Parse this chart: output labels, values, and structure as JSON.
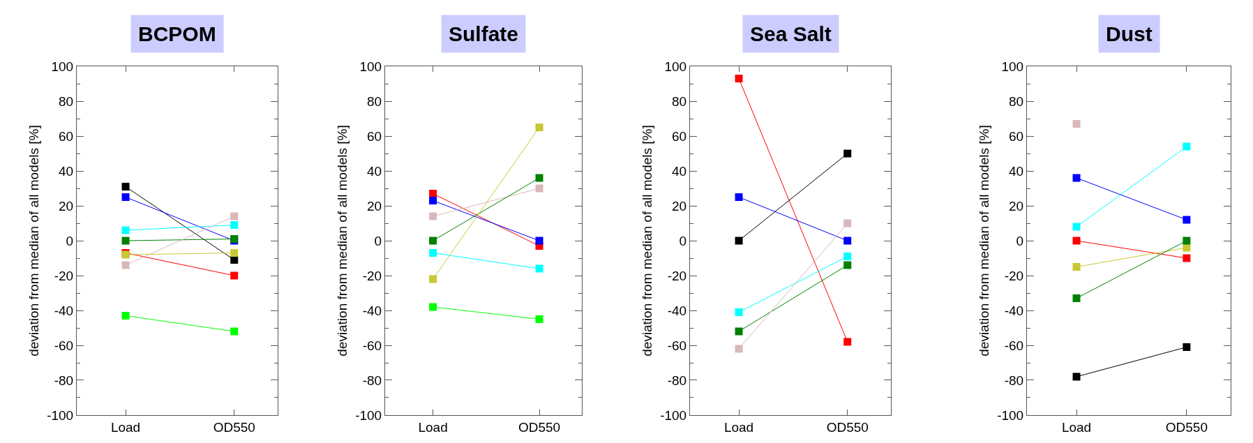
{
  "chart_data": [
    {
      "type": "line",
      "title": "BCPOM",
      "ylabel": "deviation from median of all models [%]",
      "categories": [
        "Load",
        "OD550"
      ],
      "ylim": [
        -100,
        100
      ],
      "yticks": [
        -100,
        -80,
        -60,
        -40,
        -20,
        0,
        20,
        40,
        60,
        80,
        100
      ],
      "marker": "square",
      "line_style": "solid",
      "series": [
        {
          "color": "#000000",
          "values": [
            31,
            -11
          ]
        },
        {
          "color": "#0000ff",
          "values": [
            25,
            0
          ]
        },
        {
          "color": "#00ffff",
          "values": [
            6,
            9
          ]
        },
        {
          "color": "#008000",
          "values": [
            0,
            1
          ]
        },
        {
          "color": "#ff0000",
          "values": [
            -7,
            -20
          ]
        },
        {
          "color": "#c8c832",
          "values": [
            -8,
            -7
          ]
        },
        {
          "color": "#d8b8b8",
          "values": [
            -14,
            14
          ]
        },
        {
          "color": "#00ff00",
          "values": [
            -43,
            -52
          ]
        }
      ]
    },
    {
      "type": "line",
      "title": "Sulfate",
      "ylabel": "deviation from median of all models [%]",
      "categories": [
        "Load",
        "OD550"
      ],
      "ylim": [
        -100,
        100
      ],
      "yticks": [
        -100,
        -80,
        -60,
        -40,
        -20,
        0,
        20,
        40,
        60,
        80,
        100
      ],
      "marker": "square",
      "line_style": "solid",
      "series": [
        {
          "color": "#ff0000",
          "values": [
            27,
            -3
          ]
        },
        {
          "color": "#0000ff",
          "values": [
            23,
            0
          ]
        },
        {
          "color": "#d8b8b8",
          "values": [
            14,
            30
          ]
        },
        {
          "color": "#008000",
          "values": [
            0,
            36
          ]
        },
        {
          "color": "#00ffff",
          "values": [
            -7,
            -16
          ]
        },
        {
          "color": "#c8c832",
          "values": [
            -22,
            65
          ]
        },
        {
          "color": "#00ff00",
          "values": [
            -38,
            -45
          ]
        }
      ]
    },
    {
      "type": "line",
      "title": "Sea Salt",
      "ylabel": "deviation from median of all models [%]",
      "categories": [
        "Load",
        "OD550"
      ],
      "ylim": [
        -100,
        100
      ],
      "yticks": [
        -100,
        -80,
        -60,
        -40,
        -20,
        0,
        20,
        40,
        60,
        80,
        100
      ],
      "marker": "square",
      "line_style": "solid",
      "series": [
        {
          "color": "#ff0000",
          "values": [
            93,
            -58
          ]
        },
        {
          "color": "#0000ff",
          "values": [
            25,
            0
          ]
        },
        {
          "color": "#000000",
          "values": [
            0,
            50
          ]
        },
        {
          "color": "#00ffff",
          "values": [
            -41,
            -9
          ]
        },
        {
          "color": "#008000",
          "values": [
            -52,
            -14
          ]
        },
        {
          "color": "#d8b8b8",
          "values": [
            -62,
            10
          ]
        }
      ]
    },
    {
      "type": "line",
      "title": "Dust",
      "ylabel": "deviation from median of all models [%]",
      "categories": [
        "Load",
        "OD550"
      ],
      "ylim": [
        -100,
        100
      ],
      "yticks": [
        -100,
        -80,
        -60,
        -40,
        -20,
        0,
        20,
        40,
        60,
        80,
        100
      ],
      "marker": "square",
      "line_style": "solid",
      "series": [
        {
          "color": "#d8b8b8",
          "values": [
            67,
            null
          ]
        },
        {
          "color": "#0000ff",
          "values": [
            36,
            12
          ]
        },
        {
          "color": "#00ffff",
          "values": [
            8,
            54
          ]
        },
        {
          "color": "#ff0000",
          "values": [
            0,
            -10
          ]
        },
        {
          "color": "#c8c832",
          "values": [
            -15,
            -4
          ]
        },
        {
          "color": "#008000",
          "values": [
            -33,
            0
          ]
        },
        {
          "color": "#000000",
          "values": [
            -78,
            -61
          ]
        }
      ]
    }
  ]
}
